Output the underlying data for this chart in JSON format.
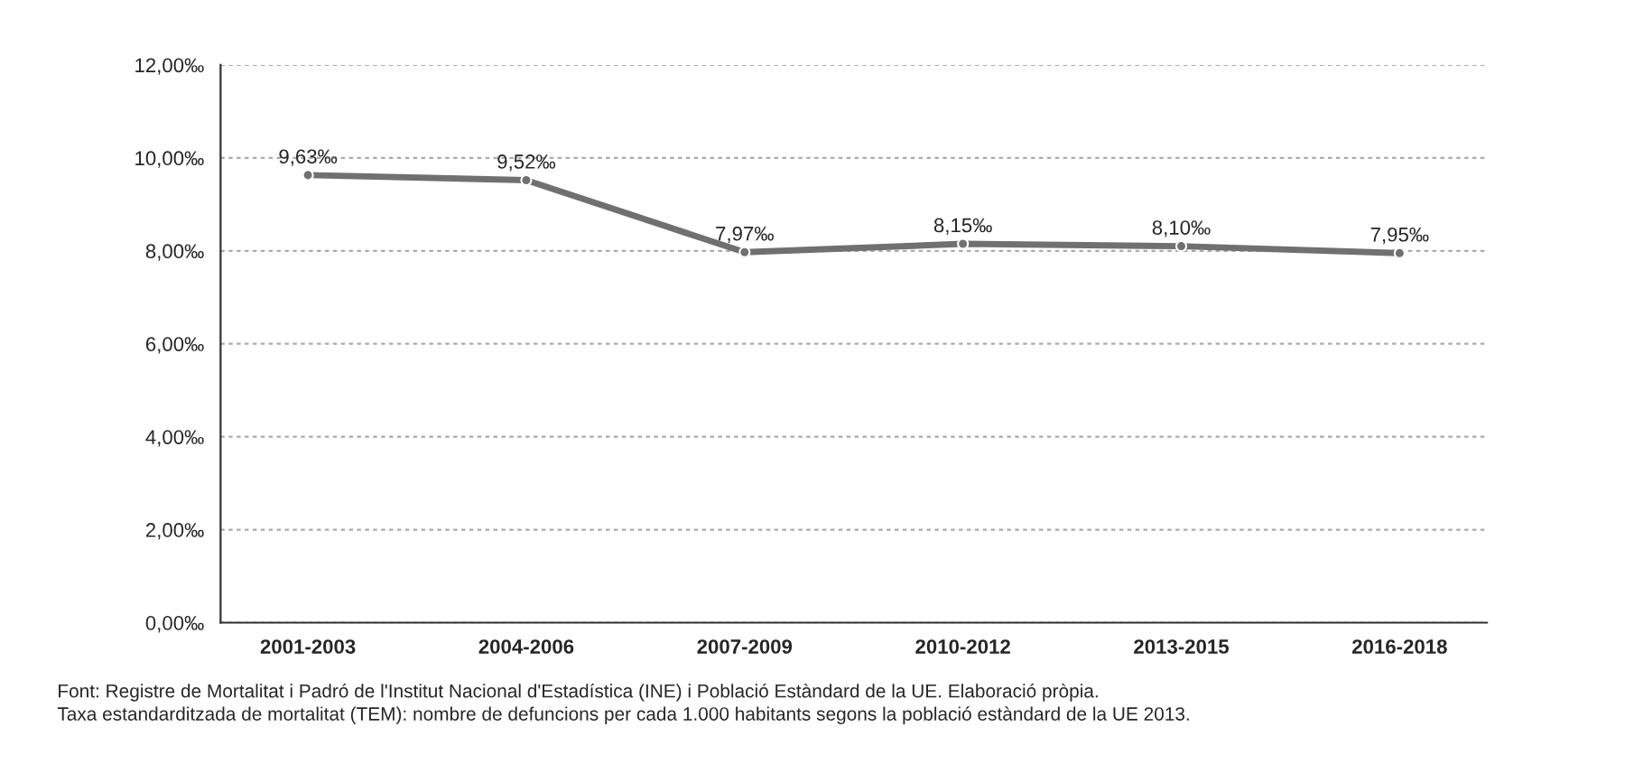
{
  "chart_data": {
    "type": "line",
    "categories": [
      "2001-2003",
      "2004-2006",
      "2007-2009",
      "2010-2012",
      "2013-2015",
      "2016-2018"
    ],
    "series": [
      {
        "color": "#707070",
        "values": [
          9.63,
          9.52,
          7.97,
          8.15,
          8.1,
          7.95
        ],
        "value_labels": [
          "9,63‰",
          "9,52‰",
          "7,97‰",
          "8,15‰",
          "8,10‰",
          "7,95‰"
        ]
      }
    ],
    "ylim": [
      0,
      12
    ],
    "yticks": [
      {
        "value": 0,
        "label": "0,00‰"
      },
      {
        "value": 2,
        "label": "2,00‰"
      },
      {
        "value": 4,
        "label": "4,00‰"
      },
      {
        "value": 6,
        "label": "6,00‰"
      },
      {
        "value": 8,
        "label": "8,00‰"
      },
      {
        "value": 10,
        "label": "10,00‰"
      },
      {
        "value": 12,
        "label": "12,00‰"
      }
    ],
    "grid": "y",
    "marker": "circle",
    "line_style": "solid",
    "annotations": [
      "Font: Registre de Mortalitat i Padró de l'Institut Nacional d'Estadística (INE) i Població Estàndard de la UE. Elaboració pròpia.",
      "Taxa estandarditzada de mortalitat (TEM): nombre de defuncions per cada 1.000 habitants segons la població estàndard de la UE 2013."
    ]
  }
}
